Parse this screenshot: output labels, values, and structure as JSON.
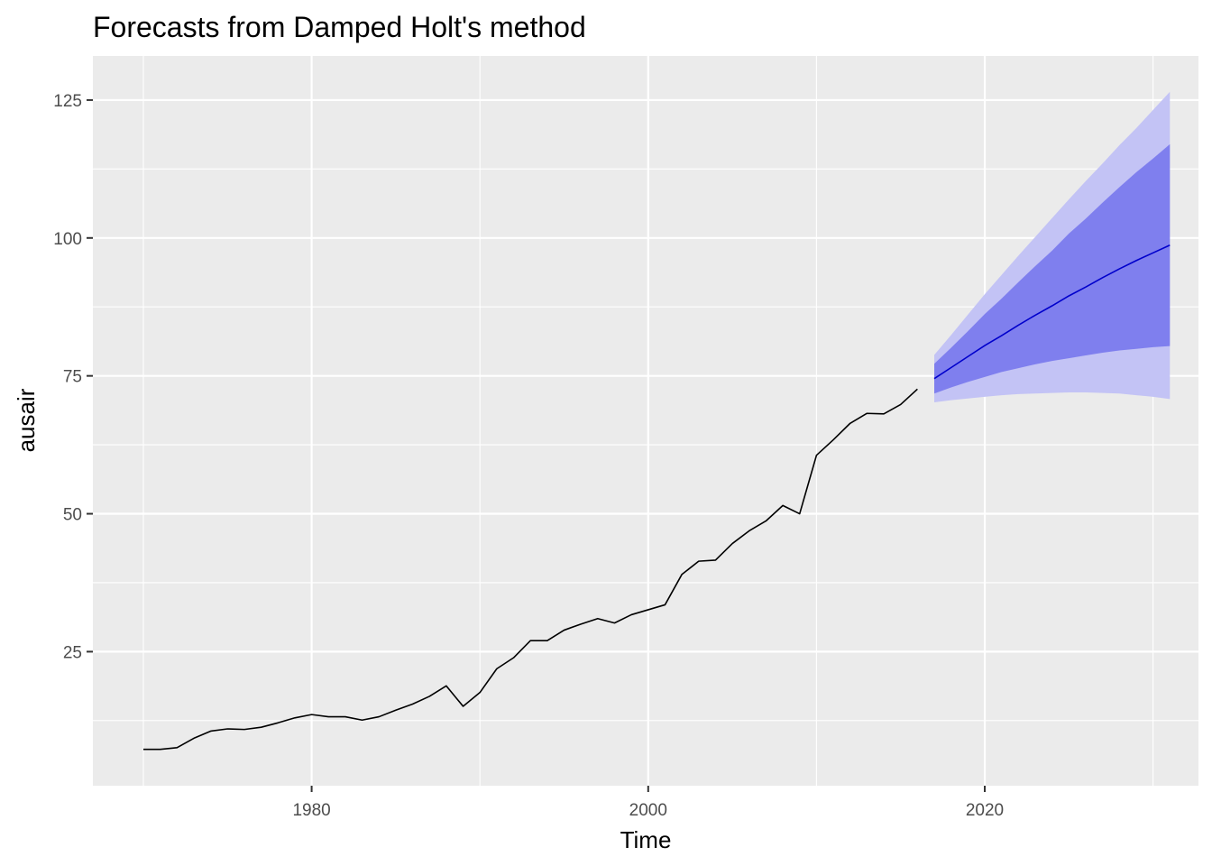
{
  "chart_data": {
    "type": "line",
    "title": "Forecasts from Damped Holt's method",
    "xlabel": "Time",
    "ylabel": "ausair",
    "xlim": [
      1967,
      2032.7
    ],
    "ylim": [
      0.7,
      133
    ],
    "x_ticks": [
      1980,
      2000,
      2020
    ],
    "y_ticks": [
      25,
      50,
      75,
      100,
      125
    ],
    "grid": true,
    "legend": "none",
    "colors": {
      "panel": "#ebebeb",
      "grid": "#ffffff",
      "history_line": "#000000",
      "forecast_line": "#0000cc",
      "band_80": "#7f7fee",
      "band_95": "#c3c3f5"
    },
    "series": [
      {
        "x": [
          1970,
          1971,
          1972,
          1973,
          1974,
          1975,
          1976,
          1977,
          1978,
          1979,
          1980,
          1981,
          1982,
          1983,
          1984,
          1985,
          1986,
          1987,
          1988,
          1989,
          1990,
          1991,
          1992,
          1993,
          1994,
          1995,
          1996,
          1997,
          1998,
          1999,
          2000,
          2001,
          2002,
          2003,
          2004,
          2005,
          2006,
          2007,
          2008,
          2009,
          2010,
          2011,
          2012,
          2013,
          2014,
          2015,
          2016
        ],
        "values": [
          7.3,
          7.3,
          7.6,
          9.3,
          10.6,
          11.0,
          10.9,
          11.3,
          12.1,
          13.0,
          13.6,
          13.2,
          13.2,
          12.6,
          13.2,
          14.4,
          15.5,
          16.9,
          18.8,
          15.1,
          17.6,
          21.9,
          23.9,
          27.0,
          27.0,
          28.9,
          30.0,
          31.0,
          30.2,
          31.7,
          32.6,
          33.5,
          39.0,
          41.4,
          41.6,
          44.6,
          46.9,
          48.7,
          51.5,
          50.0,
          60.6,
          63.4,
          66.4,
          68.2,
          68.1,
          69.8,
          72.6
        ]
      },
      {
        "x": [
          2017,
          2018,
          2019,
          2020,
          2021,
          2022,
          2023,
          2024,
          2025,
          2026,
          2027,
          2028,
          2029,
          2030,
          2031
        ],
        "values": [
          74.5,
          76.5,
          78.5,
          80.5,
          82.3,
          84.2,
          86.0,
          87.7,
          89.5,
          91.1,
          92.8,
          94.4,
          95.9,
          97.3,
          98.7
        ]
      }
    ],
    "bands": [
      {
        "level": "95",
        "x": [
          2017,
          2018,
          2019,
          2020,
          2021,
          2022,
          2023,
          2024,
          2025,
          2026,
          2027,
          2028,
          2029,
          2030,
          2031
        ],
        "lower": [
          70.2,
          70.6,
          70.9,
          71.2,
          71.5,
          71.7,
          71.8,
          71.9,
          72.0,
          72.0,
          71.9,
          71.8,
          71.5,
          71.2,
          70.8
        ],
        "upper": [
          78.8,
          82.4,
          86.1,
          89.8,
          93.3,
          96.8,
          100.2,
          103.6,
          107.0,
          110.3,
          113.5,
          116.8,
          119.9,
          123.2,
          126.5
        ]
      },
      {
        "level": "80",
        "x": [
          2017,
          2018,
          2019,
          2020,
          2021,
          2022,
          2023,
          2024,
          2025,
          2026,
          2027,
          2028,
          2029,
          2030,
          2031
        ],
        "lower": [
          71.8,
          72.9,
          73.9,
          74.8,
          75.7,
          76.4,
          77.1,
          77.7,
          78.2,
          78.7,
          79.2,
          79.6,
          79.9,
          80.2,
          80.4
        ],
        "upper": [
          77.2,
          80.1,
          83.1,
          86.2,
          89.0,
          92.0,
          94.9,
          97.7,
          100.8,
          103.5,
          106.4,
          109.2,
          111.9,
          114.4,
          117.0
        ]
      }
    ]
  }
}
